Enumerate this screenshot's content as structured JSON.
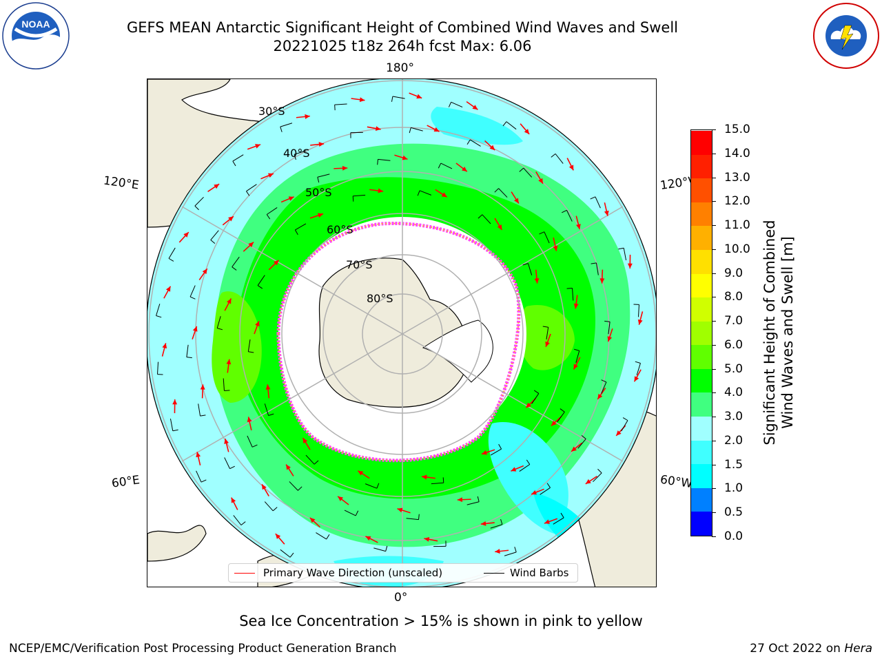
{
  "header": {
    "title_line1": "GEFS MEAN Antarctic Significant Height of Combined Wind Waves and Swell",
    "title_line2": "20221025 t18z 264h fcst   Max: 6.06"
  },
  "logos": {
    "left": "noaa-logo",
    "right": "nws-logo"
  },
  "map": {
    "projection": "south-polar-stereographic",
    "longitude_labels": {
      "top": "180°",
      "bottom": "0°",
      "upper_left": "120°E",
      "upper_right": "120°W",
      "lower_left": "60°E",
      "lower_right": "60°W"
    },
    "latitude_labels": [
      "30°S",
      "40°S",
      "50°S",
      "60°S",
      "70°S",
      "80°S"
    ],
    "legend": {
      "primary_wave": "Primary Wave Direction (unscaled)",
      "wind_barbs": "Wind Barbs"
    },
    "colors": {
      "land": "#efecdc",
      "ice_edge_pink": "#ff44ff",
      "ice_edge_yellow": "#ffb030",
      "arrow": "#ff0000",
      "barb": "#000000",
      "grid": "#b0b0b0"
    }
  },
  "colorbar": {
    "title_line1": "Significant Height of Combined",
    "title_line2": "Wind Waves and Swell [m]",
    "ticks": [
      "0.0",
      "0.5",
      "1.0",
      "1.5",
      "2.0",
      "3.0",
      "4.0",
      "5.0",
      "6.0",
      "7.0",
      "8.0",
      "9.0",
      "10.0",
      "11.0",
      "12.0",
      "13.0",
      "14.0",
      "15.0"
    ],
    "colors": [
      "#0000ff",
      "#0080ff",
      "#00ffff",
      "#40ffff",
      "#a0ffff",
      "#40ff80",
      "#00ff00",
      "#60ff00",
      "#a0ff00",
      "#d0ff00",
      "#ffff00",
      "#ffe000",
      "#ffb000",
      "#ff8000",
      "#ff5000",
      "#ff2000",
      "#ff0000"
    ]
  },
  "caption": "Sea Ice Concentration > 15% is shown in pink to yellow",
  "footer": {
    "left": "NCEP/EMC/Verification Post Processing Product Generation Branch",
    "right_date": "27 Oct 2022 on ",
    "right_host": "Hera"
  }
}
